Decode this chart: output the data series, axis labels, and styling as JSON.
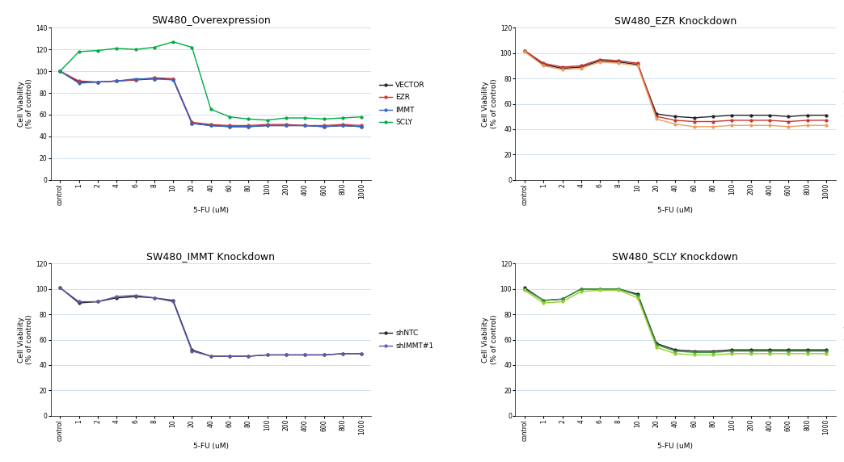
{
  "x_labels": [
    "control",
    "1",
    "2",
    "4",
    "6",
    "8",
    "10",
    "20",
    "40",
    "60",
    "80",
    "100",
    "200",
    "400",
    "600",
    "800",
    "1000"
  ],
  "x_indices": [
    0,
    1,
    2,
    3,
    4,
    5,
    6,
    7,
    8,
    9,
    10,
    11,
    12,
    13,
    14,
    15,
    16
  ],
  "plot1": {
    "title": "SW480_Overexpression",
    "ylabel": "Cell Viability\n(% of control)",
    "xlabel": "5-FU (uM)",
    "ylim": [
      0,
      140
    ],
    "yticks": [
      0,
      20,
      40,
      60,
      80,
      100,
      120,
      140
    ],
    "series": {
      "VECTOR": {
        "color": "#222222",
        "values": [
          100,
          90,
          90,
          91,
          92,
          93,
          93,
          52,
          50,
          49,
          49,
          50,
          50,
          50,
          49,
          50,
          49
        ]
      },
      "EZR": {
        "color": "#cc3333",
        "values": [
          100,
          91,
          90,
          91,
          92,
          94,
          93,
          53,
          51,
          50,
          50,
          51,
          51,
          50,
          50,
          51,
          50
        ]
      },
      "IMMT": {
        "color": "#3366cc",
        "values": [
          100,
          89,
          90,
          91,
          93,
          93,
          92,
          52,
          50,
          49,
          49,
          50,
          50,
          50,
          49,
          50,
          49
        ]
      },
      "SCLY": {
        "color": "#00aa44",
        "values": [
          100,
          118,
          119,
          121,
          120,
          122,
          127,
          122,
          65,
          58,
          56,
          55,
          57,
          57,
          56,
          57,
          58
        ]
      }
    }
  },
  "plot2": {
    "title": "SW480_EZR Knockdown",
    "ylabel": "Cell Viability\n(% of control)",
    "xlabel": "5-FU (uM)",
    "ylim": [
      0,
      120
    ],
    "yticks": [
      0,
      20,
      40,
      60,
      80,
      100,
      120
    ],
    "series": {
      "shNTC": {
        "color": "#222222",
        "values": [
          102,
          91,
          88,
          89,
          94,
          93,
          91,
          52,
          50,
          49,
          50,
          51,
          51,
          51,
          50,
          51,
          51
        ]
      },
      "shEZR#1": {
        "color": "#cc3333",
        "values": [
          102,
          92,
          89,
          90,
          95,
          94,
          92,
          50,
          47,
          46,
          46,
          47,
          47,
          47,
          46,
          47,
          47
        ]
      },
      "shEZR#2": {
        "color": "#e8a060",
        "values": [
          101,
          90,
          87,
          88,
          93,
          92,
          90,
          48,
          44,
          42,
          42,
          43,
          43,
          43,
          42,
          43,
          43
        ]
      }
    }
  },
  "plot3": {
    "title": "SW480_IMMT Knockdown",
    "ylabel": "Cell Viability\n(% of control)",
    "xlabel": "5-FU (uM)",
    "ylim": [
      0,
      120
    ],
    "yticks": [
      0,
      20,
      40,
      60,
      80,
      100,
      120
    ],
    "series": {
      "shNTC": {
        "color": "#222222",
        "values": [
          101,
          89,
          90,
          93,
          94,
          93,
          91,
          52,
          47,
          47,
          47,
          48,
          48,
          48,
          48,
          49,
          49
        ]
      },
      "shIMMT#1": {
        "color": "#6655aa",
        "values": [
          101,
          90,
          90,
          94,
          95,
          93,
          90,
          51,
          47,
          47,
          47,
          48,
          48,
          48,
          48,
          49,
          49
        ]
      }
    }
  },
  "plot4": {
    "title": "SW480_SCLY Knockdown",
    "ylabel": "Cell Viability\n(% of control)",
    "xlabel": "5-FU (uM)",
    "ylim": [
      0,
      120
    ],
    "yticks": [
      0,
      20,
      40,
      60,
      80,
      100,
      120
    ],
    "series": {
      "shNTC": {
        "color": "#222222",
        "values": [
          101,
          91,
          92,
          100,
          100,
          100,
          96,
          57,
          52,
          51,
          51,
          52,
          52,
          52,
          52,
          52,
          52
        ]
      },
      "shSCLY#1": {
        "color": "#339933",
        "values": [
          100,
          91,
          92,
          100,
          100,
          100,
          95,
          56,
          51,
          50,
          50,
          51,
          51,
          51,
          51,
          51,
          51
        ]
      },
      "shSCLY#2": {
        "color": "#99cc33",
        "values": [
          99,
          89,
          90,
          98,
          99,
          99,
          93,
          54,
          49,
          48,
          48,
          49,
          49,
          49,
          49,
          49,
          49
        ]
      }
    }
  },
  "background_color": "#ffffff",
  "grid_color": "#c8dcea",
  "marker": "o",
  "markersize": 2.5,
  "linewidth": 1.0,
  "title_fontsize": 9,
  "label_fontsize": 6.5,
  "tick_fontsize": 5.5,
  "legend_fontsize": 6.5
}
